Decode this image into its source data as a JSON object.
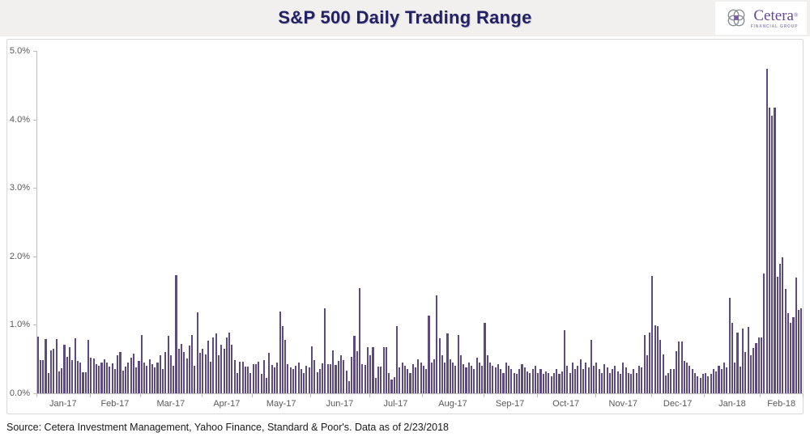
{
  "header": {
    "title": "S&P 500 Daily Trading Range",
    "logo": {
      "name": "Cetera",
      "registered": "®",
      "subtitle": "FINANCIAL GROUP"
    }
  },
  "source_line": "Source: Cetera Investment Management, Yahoo Finance, Standard & Poor's. Data as of 2/23/2018",
  "colors": {
    "bar": "#5d4a7e",
    "title": "#232163",
    "axis": "#bfbfbf",
    "axis_label": "#595959",
    "logo_purple": "#64489d",
    "header_band": "#f1f0ee"
  },
  "chart_data": {
    "type": "bar",
    "title": "S&P 500 Daily Trading Range",
    "xlabel": "",
    "ylabel": "",
    "ylim": [
      0,
      5
    ],
    "grid": false,
    "legend_position": "none",
    "y_tick_labels": [
      "0.0%",
      "1.0%",
      "2.0%",
      "3.0%",
      "4.0%",
      "5.0%"
    ],
    "unit": "percent daily high-low trading range",
    "months": [
      {
        "label": "Jan-17",
        "values": [
          0.83,
          0.49,
          0.49,
          0.79,
          0.29,
          0.63,
          0.65,
          0.79,
          0.32,
          0.37,
          0.71,
          0.53,
          0.67,
          0.49,
          0.8,
          0.47,
          0.45,
          0.31,
          0.31,
          0.78
        ]
      },
      {
        "label": "Feb-17",
        "values": [
          0.52,
          0.51,
          0.42,
          0.4,
          0.45,
          0.5,
          0.45,
          0.39,
          0.44,
          0.35,
          0.56,
          0.6,
          0.33,
          0.39,
          0.45,
          0.52,
          0.58,
          0.38,
          0.47
        ]
      },
      {
        "label": "Mar-17",
        "values": [
          0.85,
          0.45,
          0.4,
          0.5,
          0.42,
          0.38,
          0.45,
          0.55,
          0.35,
          0.6,
          0.84,
          0.55,
          0.4,
          1.72,
          0.65,
          0.72,
          0.6,
          0.51,
          0.7,
          0.85,
          0.4,
          1.18,
          0.59
        ]
      },
      {
        "label": "Apr-17",
        "values": [
          0.65,
          0.57,
          0.77,
          0.46,
          0.81,
          0.87,
          0.56,
          0.71,
          0.65,
          0.81,
          0.89,
          0.71,
          0.49,
          0.3,
          0.46,
          0.46,
          0.39,
          0.39,
          0.3
        ]
      },
      {
        "label": "May-17",
        "values": [
          0.42,
          0.43,
          0.46,
          0.28,
          0.49,
          0.22,
          0.59,
          0.41,
          0.38,
          0.45,
          1.19,
          0.98,
          0.78,
          0.42,
          0.38,
          0.35,
          0.4,
          0.45,
          0.35,
          0.3,
          0.4,
          0.38
        ]
      },
      {
        "label": "Jun-17",
        "values": [
          0.69,
          0.49,
          0.31,
          0.35,
          0.44,
          1.24,
          0.43,
          0.43,
          0.63,
          0.41,
          0.47,
          0.56,
          0.49,
          0.33,
          0.18,
          0.53,
          0.84,
          0.61,
          1.54,
          0.43,
          0.41,
          0.67
        ]
      },
      {
        "label": "Jul-17",
        "values": [
          0.55,
          0.67,
          0.22,
          0.39,
          0.39,
          0.67,
          0.67,
          0.3,
          0.2,
          0.24,
          0.98,
          0.38,
          0.45,
          0.4,
          0.35,
          0.3,
          0.42,
          0.38,
          0.5,
          0.45
        ]
      },
      {
        "label": "Aug-17",
        "values": [
          0.4,
          0.35,
          1.14,
          0.45,
          0.5,
          1.43,
          0.8,
          0.55,
          0.45,
          0.87,
          0.5,
          0.45,
          0.4,
          0.85,
          0.55,
          0.42,
          0.38,
          0.45,
          0.4,
          0.35,
          0.52,
          0.45,
          0.4
        ]
      },
      {
        "label": "Sep-17",
        "values": [
          1.03,
          0.55,
          0.45,
          0.4,
          0.38,
          0.42,
          0.35,
          0.3,
          0.45,
          0.4,
          0.35,
          0.3,
          0.28,
          0.35,
          0.42,
          0.38,
          0.32,
          0.3,
          0.35,
          0.4
        ]
      },
      {
        "label": "Oct-17",
        "values": [
          0.3,
          0.35,
          0.28,
          0.32,
          0.3,
          0.25,
          0.3,
          0.35,
          0.28,
          0.32,
          0.92,
          0.4,
          0.3,
          0.45,
          0.35,
          0.4,
          0.5,
          0.35,
          0.45,
          0.38,
          0.78,
          0.4
        ]
      },
      {
        "label": "Nov-17",
        "values": [
          0.45,
          0.35,
          0.3,
          0.42,
          0.38,
          0.29,
          0.35,
          0.4,
          0.32,
          0.28,
          0.45,
          0.38,
          0.29,
          0.28,
          0.35,
          0.3,
          0.4,
          0.38,
          0.85,
          0.55,
          0.89
        ]
      },
      {
        "label": "Dec-17",
        "values": [
          1.71,
          0.99,
          0.98,
          0.78,
          0.57,
          0.26,
          0.29,
          0.36,
          0.35,
          0.61,
          0.76,
          0.76,
          0.47,
          0.45,
          0.4,
          0.35,
          0.3,
          0.25,
          0.22,
          0.28
        ]
      },
      {
        "label": "Jan-18",
        "values": [
          0.3,
          0.25,
          0.28,
          0.35,
          0.32,
          0.4,
          0.35,
          0.45,
          0.38,
          1.4,
          1.03,
          0.45,
          0.89,
          0.39,
          0.95,
          0.6,
          0.97,
          0.55,
          0.66,
          0.73,
          0.82
        ]
      },
      {
        "label": "Feb-18",
        "values": [
          0.81,
          1.75,
          4.74,
          4.17,
          4.05,
          4.17,
          1.7,
          1.89,
          1.98,
          1.52,
          1.17,
          1.03,
          1.11,
          1.69,
          1.22,
          1.24
        ]
      }
    ]
  }
}
